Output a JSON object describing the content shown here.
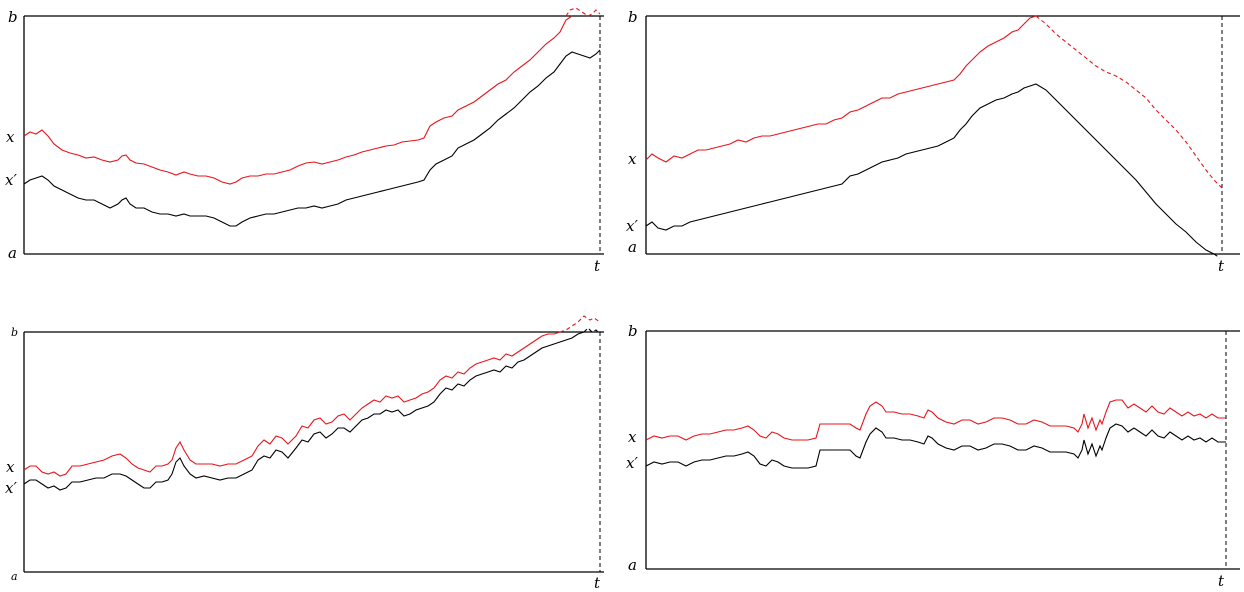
{
  "panels": [
    {
      "id": "top-left",
      "labels": {
        "b": "b",
        "a": "a",
        "x": "x",
        "xp": "x′",
        "t": "t"
      }
    },
    {
      "id": "top-right",
      "labels": {
        "b": "b",
        "a": "a",
        "x": "x",
        "xp": "x′",
        "t": "t"
      }
    },
    {
      "id": "bottom-left",
      "labels": {
        "b": "b",
        "a": "a",
        "x": "x",
        "xp": "x′",
        "t": "t"
      }
    },
    {
      "id": "bottom-right",
      "labels": {
        "b": "b",
        "a": "a",
        "x": "x",
        "xp": "x′",
        "t": "t"
      }
    }
  ],
  "colors": {
    "red_path": "#e8141b",
    "black_path": "#000000"
  }
}
